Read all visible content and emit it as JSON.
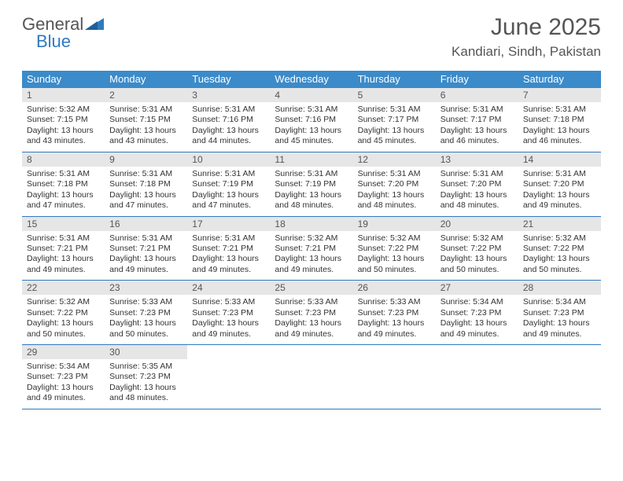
{
  "logo": {
    "part1": "General",
    "part2": "Blue"
  },
  "title": "June 2025",
  "location": "Kandiari, Sindh, Pakistan",
  "colors": {
    "header_bg": "#3b8bca",
    "header_text": "#ffffff",
    "daynum_bg": "#e6e6e6",
    "text": "#333333",
    "title_text": "#555555",
    "rule": "#2f7abf",
    "logo_blue": "#2f7abf"
  },
  "day_names": [
    "Sunday",
    "Monday",
    "Tuesday",
    "Wednesday",
    "Thursday",
    "Friday",
    "Saturday"
  ],
  "weeks": [
    [
      {
        "n": "1",
        "sr": "5:32 AM",
        "ss": "7:15 PM",
        "dl": "13 hours and 43 minutes."
      },
      {
        "n": "2",
        "sr": "5:31 AM",
        "ss": "7:15 PM",
        "dl": "13 hours and 43 minutes."
      },
      {
        "n": "3",
        "sr": "5:31 AM",
        "ss": "7:16 PM",
        "dl": "13 hours and 44 minutes."
      },
      {
        "n": "4",
        "sr": "5:31 AM",
        "ss": "7:16 PM",
        "dl": "13 hours and 45 minutes."
      },
      {
        "n": "5",
        "sr": "5:31 AM",
        "ss": "7:17 PM",
        "dl": "13 hours and 45 minutes."
      },
      {
        "n": "6",
        "sr": "5:31 AM",
        "ss": "7:17 PM",
        "dl": "13 hours and 46 minutes."
      },
      {
        "n": "7",
        "sr": "5:31 AM",
        "ss": "7:18 PM",
        "dl": "13 hours and 46 minutes."
      }
    ],
    [
      {
        "n": "8",
        "sr": "5:31 AM",
        "ss": "7:18 PM",
        "dl": "13 hours and 47 minutes."
      },
      {
        "n": "9",
        "sr": "5:31 AM",
        "ss": "7:18 PM",
        "dl": "13 hours and 47 minutes."
      },
      {
        "n": "10",
        "sr": "5:31 AM",
        "ss": "7:19 PM",
        "dl": "13 hours and 47 minutes."
      },
      {
        "n": "11",
        "sr": "5:31 AM",
        "ss": "7:19 PM",
        "dl": "13 hours and 48 minutes."
      },
      {
        "n": "12",
        "sr": "5:31 AM",
        "ss": "7:20 PM",
        "dl": "13 hours and 48 minutes."
      },
      {
        "n": "13",
        "sr": "5:31 AM",
        "ss": "7:20 PM",
        "dl": "13 hours and 48 minutes."
      },
      {
        "n": "14",
        "sr": "5:31 AM",
        "ss": "7:20 PM",
        "dl": "13 hours and 49 minutes."
      }
    ],
    [
      {
        "n": "15",
        "sr": "5:31 AM",
        "ss": "7:21 PM",
        "dl": "13 hours and 49 minutes."
      },
      {
        "n": "16",
        "sr": "5:31 AM",
        "ss": "7:21 PM",
        "dl": "13 hours and 49 minutes."
      },
      {
        "n": "17",
        "sr": "5:31 AM",
        "ss": "7:21 PM",
        "dl": "13 hours and 49 minutes."
      },
      {
        "n": "18",
        "sr": "5:32 AM",
        "ss": "7:21 PM",
        "dl": "13 hours and 49 minutes."
      },
      {
        "n": "19",
        "sr": "5:32 AM",
        "ss": "7:22 PM",
        "dl": "13 hours and 50 minutes."
      },
      {
        "n": "20",
        "sr": "5:32 AM",
        "ss": "7:22 PM",
        "dl": "13 hours and 50 minutes."
      },
      {
        "n": "21",
        "sr": "5:32 AM",
        "ss": "7:22 PM",
        "dl": "13 hours and 50 minutes."
      }
    ],
    [
      {
        "n": "22",
        "sr": "5:32 AM",
        "ss": "7:22 PM",
        "dl": "13 hours and 50 minutes."
      },
      {
        "n": "23",
        "sr": "5:33 AM",
        "ss": "7:23 PM",
        "dl": "13 hours and 50 minutes."
      },
      {
        "n": "24",
        "sr": "5:33 AM",
        "ss": "7:23 PM",
        "dl": "13 hours and 49 minutes."
      },
      {
        "n": "25",
        "sr": "5:33 AM",
        "ss": "7:23 PM",
        "dl": "13 hours and 49 minutes."
      },
      {
        "n": "26",
        "sr": "5:33 AM",
        "ss": "7:23 PM",
        "dl": "13 hours and 49 minutes."
      },
      {
        "n": "27",
        "sr": "5:34 AM",
        "ss": "7:23 PM",
        "dl": "13 hours and 49 minutes."
      },
      {
        "n": "28",
        "sr": "5:34 AM",
        "ss": "7:23 PM",
        "dl": "13 hours and 49 minutes."
      }
    ],
    [
      {
        "n": "29",
        "sr": "5:34 AM",
        "ss": "7:23 PM",
        "dl": "13 hours and 49 minutes."
      },
      {
        "n": "30",
        "sr": "5:35 AM",
        "ss": "7:23 PM",
        "dl": "13 hours and 48 minutes."
      },
      null,
      null,
      null,
      null,
      null
    ]
  ],
  "labels": {
    "sunrise": "Sunrise: ",
    "sunset": "Sunset: ",
    "daylight": "Daylight: "
  }
}
